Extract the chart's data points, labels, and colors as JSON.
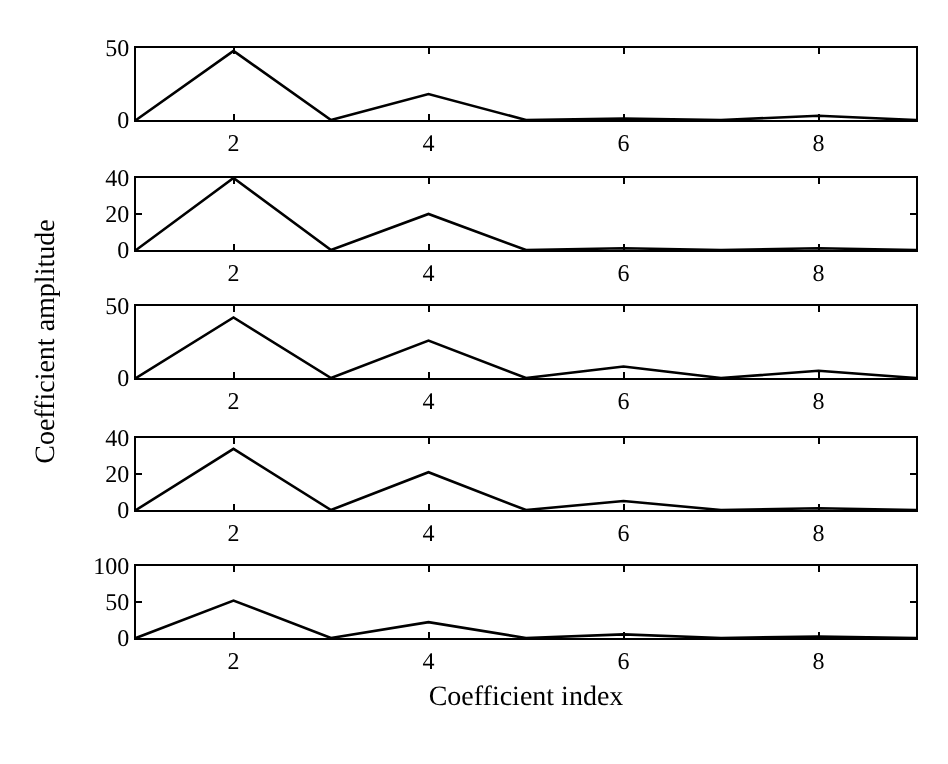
{
  "chart_data": [
    {
      "type": "line",
      "x": [
        1,
        2,
        3,
        4,
        5,
        6,
        7,
        8,
        9
      ],
      "series": [
        {
          "color": "#000000",
          "values": [
            0,
            48,
            0,
            18,
            0,
            1,
            0,
            3,
            0
          ]
        }
      ],
      "xlim": [
        1,
        9
      ],
      "xticks": [
        2,
        4,
        6,
        8
      ],
      "ylim": [
        0,
        50
      ],
      "yticks": [
        0,
        50
      ]
    },
    {
      "type": "line",
      "x": [
        1,
        2,
        3,
        4,
        5,
        6,
        7,
        8,
        9
      ],
      "series": [
        {
          "color": "#000000",
          "values": [
            0,
            40,
            0,
            20,
            0,
            1,
            0,
            1,
            0
          ]
        }
      ],
      "xlim": [
        1,
        9
      ],
      "xticks": [
        2,
        4,
        6,
        8
      ],
      "ylim": [
        0,
        40
      ],
      "yticks": [
        0,
        20,
        40
      ]
    },
    {
      "type": "line",
      "x": [
        1,
        2,
        3,
        4,
        5,
        6,
        7,
        8,
        9
      ],
      "series": [
        {
          "color": "#000000",
          "values": [
            0,
            42,
            0,
            26,
            0,
            8,
            0,
            5,
            0
          ]
        }
      ],
      "xlim": [
        1,
        9
      ],
      "xticks": [
        2,
        4,
        6,
        8
      ],
      "ylim": [
        0,
        50
      ],
      "yticks": [
        0,
        50
      ],
      "ylabel": "Coefficient amplitude"
    },
    {
      "type": "line",
      "x": [
        1,
        2,
        3,
        4,
        5,
        6,
        7,
        8,
        9
      ],
      "series": [
        {
          "color": "#000000",
          "values": [
            0,
            34,
            0,
            21,
            0,
            5,
            0,
            1,
            0
          ]
        }
      ],
      "xlim": [
        1,
        9
      ],
      "xticks": [
        2,
        4,
        6,
        8
      ],
      "ylim": [
        0,
        40
      ],
      "yticks": [
        0,
        20,
        40
      ]
    },
    {
      "type": "line",
      "x": [
        1,
        2,
        3,
        4,
        5,
        6,
        7,
        8,
        9
      ],
      "series": [
        {
          "color": "#000000",
          "values": [
            0,
            52,
            0,
            22,
            0,
            5,
            0,
            2,
            0
          ]
        }
      ],
      "xlim": [
        1,
        9
      ],
      "xticks": [
        2,
        4,
        6,
        8
      ],
      "ylim": [
        0,
        100
      ],
      "yticks": [
        0,
        50,
        100
      ],
      "xlabel": "Coefficient index"
    }
  ]
}
